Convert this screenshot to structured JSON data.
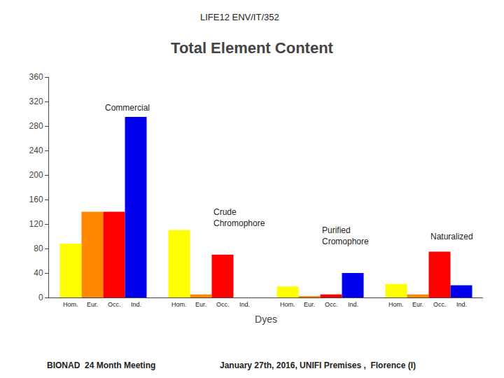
{
  "chart_data": {
    "type": "bar",
    "title": "Total Element Content",
    "header": "LIFE12 ENV/IT/352",
    "footer": [
      "BIONAD  24 Month Meeting",
      "January 27th, 2016, UNIFI Premises ,  Florence (I)"
    ],
    "xlabel": "Dyes",
    "categories": [
      null,
      null,
      null,
      null
    ],
    "series": [
      {
        "name": "Hom.",
        "color": "#FFFF00",
        "values": [
          88,
          110,
          18,
          22
        ]
      },
      {
        "name": "Eur.",
        "color": "#FF8800",
        "values": [
          140,
          5,
          2,
          5
        ]
      },
      {
        "name": "Occ.",
        "color": "#FF0000",
        "values": [
          140,
          70,
          5,
          75
        ]
      },
      {
        "name": "Ind.",
        "color": "#0000EE",
        "values": [
          295,
          0,
          40,
          20
        ]
      }
    ],
    "annotations": [
      {
        "text": "Commercial",
        "x": 0,
        "y": 320
      },
      {
        "text": "Crude\nChromophore",
        "x": 1,
        "y": 150
      },
      {
        "text": "Purified\nCromophore",
        "x": 2,
        "y": 120
      },
      {
        "text": "Naturalized",
        "x": 3,
        "y": 110
      }
    ],
    "ylim": [
      0,
      360
    ],
    "yticks": [
      0,
      40,
      80,
      120,
      160,
      200,
      240,
      280,
      320,
      360
    ],
    "grid": false
  }
}
